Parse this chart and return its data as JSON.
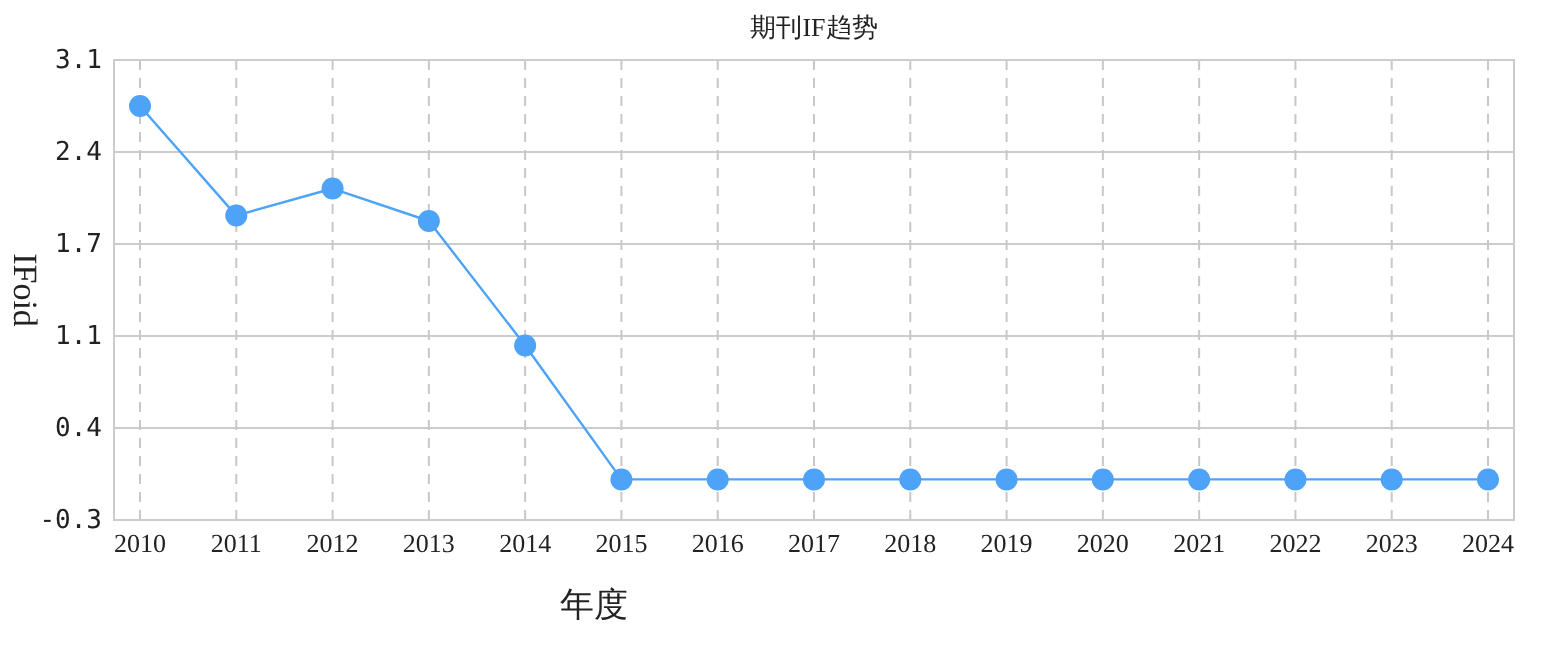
{
  "chart_data": {
    "type": "line",
    "title": "期刊IF趋势",
    "xlabel": "年度",
    "ylabel": "IFoid",
    "categories": [
      "2010",
      "2011",
      "2012",
      "2013",
      "2014",
      "2015",
      "2016",
      "2017",
      "2018",
      "2019",
      "2020",
      "2021",
      "2022",
      "2023",
      "2024"
    ],
    "series": [
      {
        "color": "#4da3f7",
        "values": [
          2.76,
          1.95,
          2.15,
          1.91,
          0.99,
          0,
          0,
          0,
          0,
          0,
          0,
          0,
          0,
          0,
          0
        ]
      }
    ],
    "ylim": [
      -0.3,
      3.1
    ],
    "yticks": [
      -0.3,
      {
        "value": 0.38,
        "label": "0.4"
      },
      {
        "value": 1.06,
        "label": "1.1"
      },
      {
        "value": 1.74,
        "label": "1.7"
      },
      {
        "value": 2.42,
        "label": "2.4"
      },
      3.1
    ],
    "grid": true,
    "marker": "circle",
    "line_style": "solid"
  }
}
